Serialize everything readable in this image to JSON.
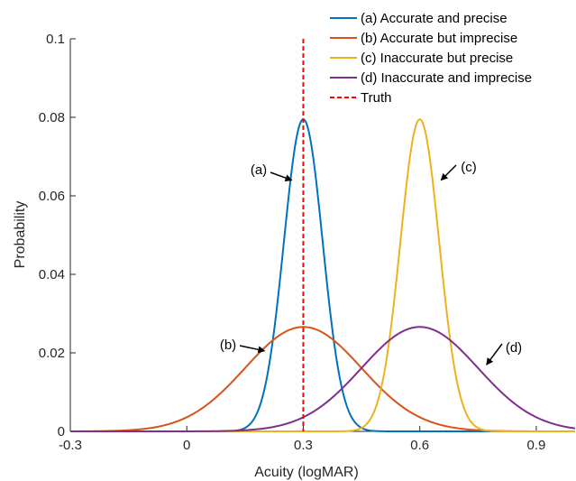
{
  "chart_data": {
    "type": "line",
    "title": "",
    "xlabel": "Acuity (logMAR)",
    "ylabel": "Probability",
    "xlim": [
      -0.3,
      1.0
    ],
    "ylim": [
      0,
      0.1
    ],
    "xticks": [
      "-0.3",
      "0",
      "0.3",
      "0.6",
      "0.9"
    ],
    "yticks": [
      "0",
      "0.02",
      "0.04",
      "0.06",
      "0.08",
      "0.1"
    ],
    "grid": false,
    "legend_position": "top-right",
    "series": [
      {
        "name": "(a) Accurate and precise",
        "distribution": "normal",
        "mean": 0.3,
        "peak": 0.0795,
        "sd": 0.05,
        "color": "#0072BD"
      },
      {
        "name": "(b) Accurate but imprecise",
        "distribution": "normal",
        "mean": 0.3,
        "peak": 0.0266,
        "sd": 0.15,
        "color": "#D95319"
      },
      {
        "name": "(c) Inaccurate but precise",
        "distribution": "normal",
        "mean": 0.6,
        "peak": 0.0795,
        "sd": 0.05,
        "color": "#EDB120"
      },
      {
        "name": "(d) Inaccurate and imprecise",
        "distribution": "normal",
        "mean": 0.6,
        "peak": 0.0266,
        "sd": 0.15,
        "color": "#7E2F8E"
      }
    ],
    "reference_line": {
      "name": "Truth",
      "x": 0.3,
      "style": "dashed",
      "color": "#FF0000"
    },
    "annotations": [
      {
        "text": "(a)",
        "arrow_to": {
          "x": 0.27,
          "y": 0.064
        }
      },
      {
        "text": "(b)",
        "arrow_to": {
          "x": 0.2,
          "y": 0.0205
        }
      },
      {
        "text": "(c)",
        "arrow_to": {
          "x": 0.655,
          "y": 0.064
        }
      },
      {
        "text": "(d)",
        "arrow_to": {
          "x": 0.772,
          "y": 0.017
        }
      }
    ]
  }
}
